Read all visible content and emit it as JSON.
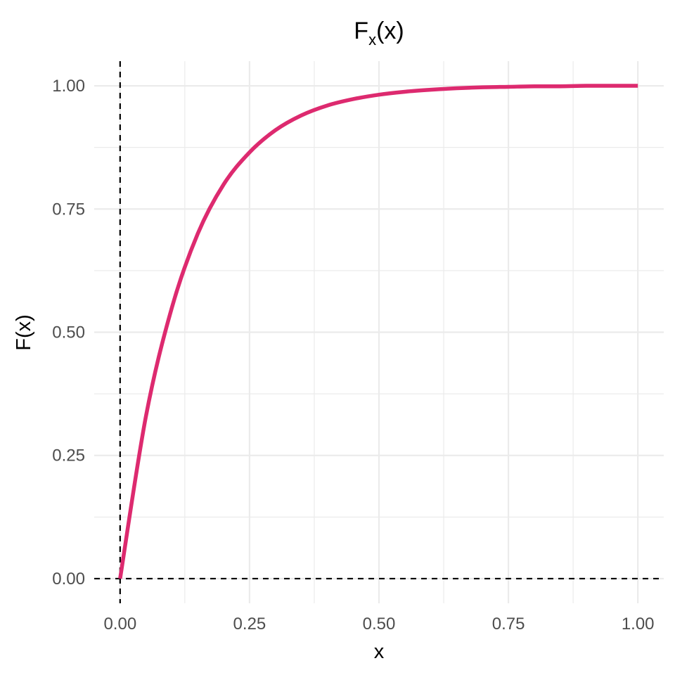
{
  "chart_data": {
    "type": "line",
    "title": "F",
    "title_subscript": "x",
    "title_suffix": "(x)",
    "xlabel": "x",
    "ylabel": "F(x)",
    "xlim": [
      -0.05,
      1.05
    ],
    "ylim": [
      -0.05,
      1.05
    ],
    "x_ticks": [
      0,
      0.25,
      0.5,
      0.75,
      1
    ],
    "x_tick_labels": [
      "0.00",
      "0.25",
      "0.50",
      "0.75",
      "1.00"
    ],
    "y_ticks": [
      0,
      0.25,
      0.5,
      0.75,
      1
    ],
    "y_tick_labels": [
      "0.00",
      "0.25",
      "0.50",
      "0.75",
      "1.00"
    ],
    "grid": true,
    "reference_lines": {
      "vertical_x": 0,
      "horizontal_y": 0,
      "style": "dashed"
    },
    "series": [
      {
        "color": "#dd2a6f",
        "x": [
          0,
          0.05,
          0.1,
          0.15,
          0.2,
          0.25,
          0.3,
          0.35,
          0.4,
          0.45,
          0.5,
          0.55,
          0.6,
          0.65,
          0.7,
          0.75,
          0.8,
          0.85,
          0.9,
          0.95,
          1.0
        ],
        "y": [
          0,
          0.33,
          0.55,
          0.7,
          0.8,
          0.865,
          0.91,
          0.94,
          0.96,
          0.973,
          0.982,
          0.988,
          0.992,
          0.995,
          0.997,
          0.998,
          0.999,
          0.999,
          1.0,
          1.0,
          1.0
        ]
      }
    ]
  },
  "colors": {
    "grid": "#ebebeb",
    "reference_line": "#000000",
    "curve": "#dd2a6f"
  }
}
